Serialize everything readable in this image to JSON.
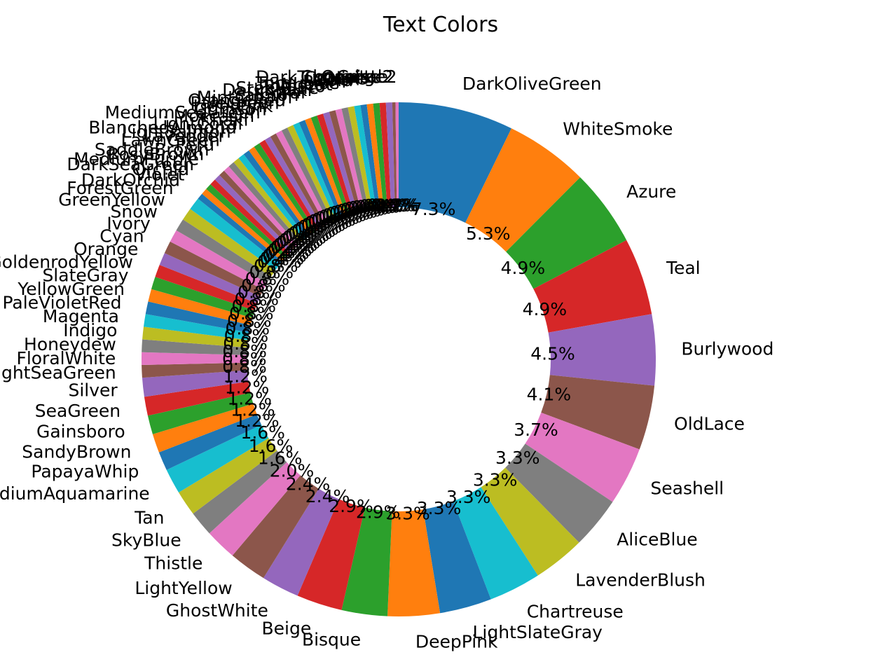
{
  "chart_data": {
    "type": "pie",
    "variant": "donut",
    "title": "Text Colors",
    "start_angle_deg": 90,
    "direction": "clockwise",
    "palette": [
      "#1f77b4",
      "#ff7f0e",
      "#2ca02c",
      "#d62728",
      "#9467bd",
      "#8c564b",
      "#e377c2",
      "#7f7f7f",
      "#bcbd22",
      "#17becf"
    ],
    "slices": [
      {
        "label": "DarkOliveGreen",
        "value": 7.3
      },
      {
        "label": "WhiteSmoke",
        "value": 5.3
      },
      {
        "label": "Azure",
        "value": 4.9
      },
      {
        "label": "Teal",
        "value": 4.9
      },
      {
        "label": "Burlywood",
        "value": 4.5
      },
      {
        "label": "OldLace",
        "value": 4.1
      },
      {
        "label": "Seashell",
        "value": 3.7
      },
      {
        "label": "AliceBlue",
        "value": 3.3
      },
      {
        "label": "LavenderBlush",
        "value": 3.3
      },
      {
        "label": "Chartreuse",
        "value": 3.3
      },
      {
        "label": "LightSlateGray",
        "value": 3.3
      },
      {
        "label": "DeepPink",
        "value": 3.3
      },
      {
        "label": "Bisque",
        "value": 2.9
      },
      {
        "label": "Beige",
        "value": 2.9
      },
      {
        "label": "GhostWhite",
        "value": 2.4
      },
      {
        "label": "LightYellow",
        "value": 2.4
      },
      {
        "label": "Thistle",
        "value": 2.0
      },
      {
        "label": "SkyBlue",
        "value": 1.6
      },
      {
        "label": "Tan",
        "value": 1.6
      },
      {
        "label": "MediumAquamarine",
        "value": 1.6
      },
      {
        "label": "PapayaWhip",
        "value": 1.2
      },
      {
        "label": "SandyBrown",
        "value": 1.2
      },
      {
        "label": "Gainsboro",
        "value": 1.2
      },
      {
        "label": "SeaGreen",
        "value": 1.2
      },
      {
        "label": "Silver",
        "value": 1.2
      },
      {
        "label": "LightSeaGreen",
        "value": 0.8
      },
      {
        "label": "FloralWhite",
        "value": 0.8
      },
      {
        "label": "Honeydew",
        "value": 0.8
      },
      {
        "label": "Indigo",
        "value": 0.8
      },
      {
        "label": "Magenta",
        "value": 0.8
      },
      {
        "label": "PaleVioletRed",
        "value": 0.8
      },
      {
        "label": "YellowGreen",
        "value": 0.8
      },
      {
        "label": "SlateGray",
        "value": 0.8
      },
      {
        "label": "LightGoldenrodYellow",
        "value": 0.8
      },
      {
        "label": "Orange",
        "value": 0.8
      },
      {
        "label": "Cyan",
        "value": 0.8
      },
      {
        "label": "Ivory",
        "value": 0.8
      },
      {
        "label": "Snow",
        "value": 0.8
      },
      {
        "label": "GreenYellow",
        "value": 0.8
      },
      {
        "label": "ForestGreen",
        "value": 0.8
      },
      {
        "label": "DarkOrchid",
        "value": 0.4
      },
      {
        "label": "Violet",
        "value": 0.4
      },
      {
        "label": "Orchid",
        "value": 0.4
      },
      {
        "label": "DarkSeaGreen",
        "value": 0.4
      },
      {
        "label": "MediumPurple",
        "value": 0.4
      },
      {
        "label": "RosyBrown",
        "value": 0.4
      },
      {
        "label": "SaddleBrown",
        "value": 0.4
      },
      {
        "label": "Peru",
        "value": 0.4
      },
      {
        "label": "LawnGreen",
        "value": 0.4
      },
      {
        "label": "Lavender",
        "value": 0.4
      },
      {
        "label": "LightSalmon",
        "value": 0.4
      },
      {
        "label": "BlanchedAlmond",
        "value": 0.4
      },
      {
        "label": "LightCoral",
        "value": 0.4
      },
      {
        "label": "Khaki",
        "value": 0.4
      },
      {
        "label": "Moccasin",
        "value": 0.4
      },
      {
        "label": "MediumSeaGreen",
        "value": 0.4
      },
      {
        "label": "Crimson",
        "value": 0.4
      },
      {
        "label": "LightPink",
        "value": 0.4
      },
      {
        "label": "PaleGreen",
        "value": 0.4
      },
      {
        "label": "OrangeRed",
        "value": 0.4
      },
      {
        "label": "MintCream",
        "value": 0.4
      },
      {
        "label": "Salmon",
        "value": 0.4
      },
      {
        "label": "Coral",
        "value": 0.4
      },
      {
        "label": "DarkKhaki",
        "value": 0.4
      },
      {
        "label": "SteelBlue",
        "value": 0.4
      },
      {
        "label": "Tomato",
        "value": 0.4
      },
      {
        "label": "Wheat",
        "value": 0.4
      },
      {
        "label": "Turquoise",
        "value": 0.4
      },
      {
        "label": "Plum",
        "value": 0.4
      },
      {
        "label": "Gold",
        "value": 0.4
      },
      {
        "label": "Linen",
        "value": 0.4
      },
      {
        "label": "Olive",
        "value": 0.4
      },
      {
        "label": "Cornsilk",
        "value": 0.4
      },
      {
        "label": "DarkTurquoise",
        "value": 0.4
      },
      {
        "label": "Chocolate",
        "value": 0.4
      },
      {
        "label": "Coral2",
        "value": 0.2
      },
      {
        "label": "Orange2",
        "value": 0.2
      }
    ]
  }
}
